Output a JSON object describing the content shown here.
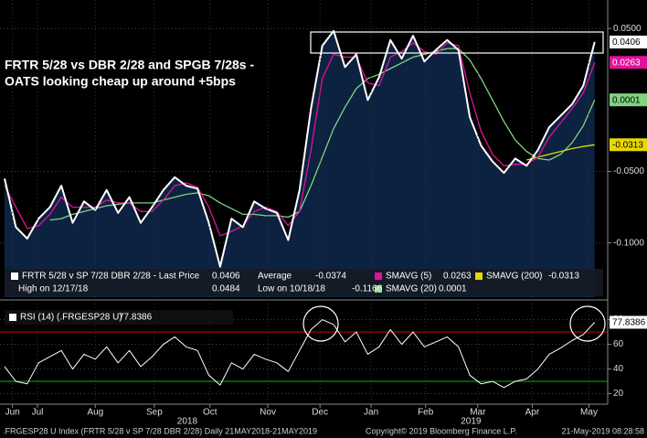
{
  "annotation": {
    "lines": [
      "FRTR 5/28 vs DBR 2/28 and SPGB 7/28s -",
      "OATS looking cheap up around +5bps"
    ]
  },
  "footer": {
    "left": ".FRGESP28 U Index (FRTR 5/28 v SP 7/28 DBR 2/28)  Daily 21MAY2018-21MAY2019",
    "center": "Copyright© 2019 Bloomberg Finance L.P.",
    "right": "21-May-2019 08:28:58"
  },
  "chart_data": [
    {
      "type": "line",
      "area_color": "#0d2240",
      "x": [
        0,
        1,
        2,
        3,
        4,
        5,
        6,
        7,
        8,
        9,
        10,
        11,
        12,
        13,
        14,
        15,
        16,
        17,
        18,
        19,
        20,
        21,
        22,
        23,
        24,
        25,
        26,
        27,
        28,
        29,
        30,
        31,
        32,
        33,
        34,
        35,
        36,
        37,
        38,
        39,
        40,
        41,
        42,
        43,
        44,
        45,
        46,
        47,
        48,
        49,
        50,
        51,
        52
      ],
      "xlim": [
        -0.4,
        53.15
      ],
      "ylim": [
        -0.138,
        0.07
      ],
      "yticks": [
        {
          "value": 0.05,
          "label": "0.0500"
        },
        {
          "value": -0.05,
          "label": "-0.0500"
        },
        {
          "value": -0.1,
          "label": "-0.1000"
        }
      ],
      "grid": true,
      "series": [
        {
          "name": "FRTR 5/28 v SP 7/28 DBR 2/28 - Last Price",
          "color": "#ffffff",
          "fill": true,
          "last_label": "0.0406",
          "values": [
            -0.055,
            -0.089,
            -0.097,
            -0.083,
            -0.075,
            -0.06,
            -0.086,
            -0.071,
            -0.077,
            -0.063,
            -0.079,
            -0.068,
            -0.086,
            -0.075,
            -0.063,
            -0.054,
            -0.06,
            -0.062,
            -0.086,
            -0.1166,
            -0.083,
            -0.089,
            -0.071,
            -0.076,
            -0.079,
            -0.098,
            -0.063,
            -0.006,
            0.038,
            0.0484,
            0.023,
            0.032,
            0.0,
            0.016,
            0.042,
            0.029,
            0.045,
            0.027,
            0.035,
            0.042,
            0.035,
            -0.012,
            -0.032,
            -0.043,
            -0.051,
            -0.041,
            -0.046,
            -0.035,
            -0.019,
            -0.011,
            -0.003,
            0.01,
            0.0406
          ]
        },
        {
          "name": "SMAVG (5)",
          "color": "#e0129a",
          "last_label": "0.0263",
          "values": [
            -0.06,
            -0.075,
            -0.09,
            -0.088,
            -0.08,
            -0.068,
            -0.075,
            -0.075,
            -0.075,
            -0.07,
            -0.072,
            -0.072,
            -0.078,
            -0.078,
            -0.07,
            -0.06,
            -0.058,
            -0.061,
            -0.075,
            -0.095,
            -0.092,
            -0.088,
            -0.078,
            -0.075,
            -0.078,
            -0.088,
            -0.078,
            -0.035,
            0.015,
            0.032,
            0.03,
            0.03,
            0.012,
            0.01,
            0.03,
            0.034,
            0.04,
            0.034,
            0.032,
            0.04,
            0.038,
            0.005,
            -0.022,
            -0.038,
            -0.046,
            -0.045,
            -0.045,
            -0.04,
            -0.026,
            -0.016,
            -0.006,
            0.005,
            0.0263
          ]
        },
        {
          "name": "SMAVG (20)",
          "color": "#7fd47f",
          "last_label": "0.0001",
          "values": [
            null,
            null,
            null,
            null,
            -0.084,
            -0.083,
            -0.08,
            -0.078,
            -0.076,
            -0.074,
            -0.073,
            -0.072,
            -0.072,
            -0.072,
            -0.07,
            -0.068,
            -0.066,
            -0.065,
            -0.067,
            -0.072,
            -0.076,
            -0.08,
            -0.08,
            -0.081,
            -0.081,
            -0.082,
            -0.078,
            -0.06,
            -0.04,
            -0.02,
            -0.005,
            0.008,
            0.015,
            0.018,
            0.022,
            0.026,
            0.03,
            0.032,
            0.034,
            0.036,
            0.036,
            0.028,
            0.015,
            0.0,
            -0.015,
            -0.028,
            -0.036,
            -0.041,
            -0.042,
            -0.038,
            -0.03,
            -0.018,
            0.0001
          ]
        },
        {
          "name": "SMAVG (200)",
          "color": "#e8d800",
          "last_label": "-0.0313",
          "values": [
            null,
            null,
            null,
            null,
            null,
            null,
            null,
            null,
            null,
            null,
            null,
            null,
            null,
            null,
            null,
            null,
            null,
            null,
            null,
            null,
            null,
            null,
            null,
            null,
            null,
            null,
            null,
            null,
            null,
            null,
            null,
            null,
            null,
            null,
            null,
            null,
            null,
            null,
            null,
            null,
            null,
            null,
            null,
            null,
            null,
            null,
            -0.042,
            -0.04,
            -0.038,
            -0.036,
            -0.034,
            -0.0325,
            -0.0313
          ]
        }
      ],
      "stats": [
        {
          "label": "Average",
          "value": "-0.0374"
        },
        {
          "label": "High on 12/17/18",
          "value": "0.0484"
        },
        {
          "label": "Low on 10/18/18",
          "value": "-0.1166"
        }
      ]
    },
    {
      "type": "line",
      "x": [
        0,
        1,
        2,
        3,
        4,
        5,
        6,
        7,
        8,
        9,
        10,
        11,
        12,
        13,
        14,
        15,
        16,
        17,
        18,
        19,
        20,
        21,
        22,
        23,
        24,
        25,
        26,
        27,
        28,
        29,
        30,
        31,
        32,
        33,
        34,
        35,
        36,
        37,
        38,
        39,
        40,
        41,
        42,
        43,
        44,
        45,
        46,
        47,
        48,
        49,
        50,
        51,
        52
      ],
      "xlim": [
        -0.4,
        53.15
      ],
      "ylim": [
        13,
        93
      ],
      "yticks": [
        80,
        60,
        40,
        20
      ],
      "grid": true,
      "xticks": [
        {
          "value": 0.7,
          "label": "Jun"
        },
        {
          "value": 2.9,
          "label": "Jul"
        },
        {
          "value": 8.0,
          "label": "Aug"
        },
        {
          "value": 13.2,
          "label": "Sep"
        },
        {
          "value": 18.1,
          "label": "Oct"
        },
        {
          "value": 23.2,
          "label": "Nov"
        },
        {
          "value": 27.8,
          "label": "Dec"
        },
        {
          "value": 32.3,
          "label": "Jan"
        },
        {
          "value": 37.1,
          "label": "Feb"
        },
        {
          "value": 41.7,
          "label": "Mar"
        },
        {
          "value": 46.5,
          "label": "Apr"
        },
        {
          "value": 51.5,
          "label": "May"
        }
      ],
      "year_ticks": [
        {
          "value": 16.1,
          "label": "2018"
        },
        {
          "value": 41.1,
          "label": "2019"
        }
      ],
      "hlines": [
        {
          "value": 70,
          "color": "#c00000"
        },
        {
          "value": 30,
          "color": "#00a000"
        }
      ],
      "series": [
        {
          "name": "RSI (14) (.FRGESP28 U)",
          "color": "#ffffff",
          "last_label": "77.8386",
          "values": [
            42,
            30,
            28,
            45,
            50,
            55,
            40,
            52,
            48,
            58,
            45,
            55,
            42,
            50,
            60,
            66,
            58,
            55,
            35,
            27,
            45,
            40,
            52,
            48,
            45,
            38,
            55,
            72,
            80,
            76,
            62,
            70,
            52,
            58,
            72,
            60,
            70,
            58,
            62,
            66,
            58,
            35,
            28,
            30,
            25,
            30,
            32,
            40,
            52,
            57,
            63,
            68,
            77.8386
          ]
        }
      ]
    }
  ]
}
